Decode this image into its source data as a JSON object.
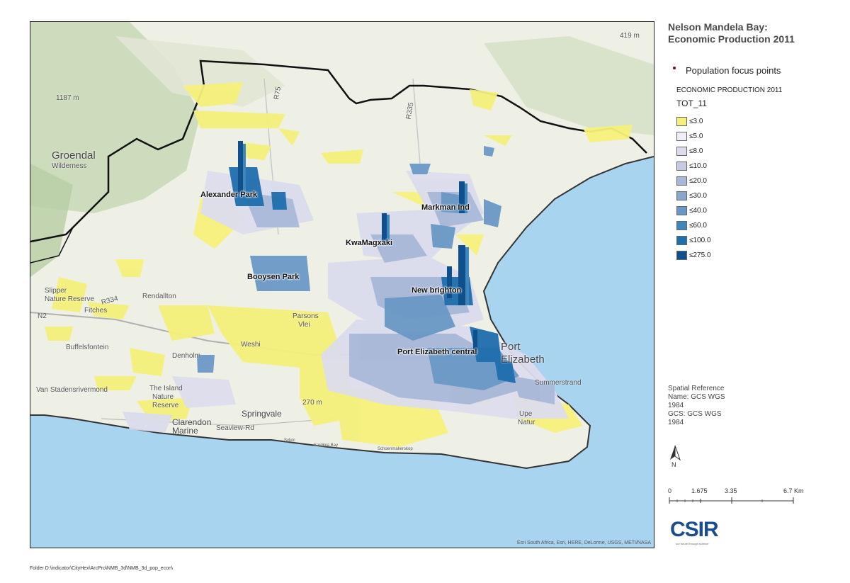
{
  "title": {
    "line1": "Nelson Mandela Bay:",
    "line2": "Economic Production 2011"
  },
  "legend": {
    "points_label": "Population focus points",
    "layer_name": "ECONOMIC PRODUCTION 2011",
    "field_name": "TOT_11",
    "classes": [
      {
        "label": "≤3.0",
        "color": "#f5f07a"
      },
      {
        "label": "≤5.0",
        "color": "#f1eef8"
      },
      {
        "label": "≤8.0",
        "color": "#dcdced"
      },
      {
        "label": "≤10.0",
        "color": "#c6cbe3"
      },
      {
        "label": "≤20.0",
        "color": "#a9b8d8"
      },
      {
        "label": "≤30.0",
        "color": "#8aa6cd"
      },
      {
        "label": "≤40.0",
        "color": "#6a98c6"
      },
      {
        "label": "≤60.0",
        "color": "#3f86bd"
      },
      {
        "label": "≤100.0",
        "color": "#1f6ead"
      },
      {
        "label": "≤275.0",
        "color": "#0e4f8c"
      }
    ],
    "points_color": "#6b0f14"
  },
  "map": {
    "place_labels": [
      "Alexander Park",
      "Markman Ind",
      "KwaMagxaki",
      "Booysen Park",
      "New brighton",
      "Port Elizabeth central"
    ],
    "base_labels": {
      "groendal": "Groendal",
      "wilderness": "Wilderness",
      "rendallton": "Rendallton",
      "parsons": "Parsons",
      "vlei": "Vlei",
      "weshi": "Weshi",
      "buffelsfontein": "Buffelsfontein",
      "denholm": "Denholm",
      "fitches": "Fitches",
      "springvale": "Springvale",
      "the_island": "The Island",
      "nature_reserve": "Nature",
      "reserve": "Reserve",
      "clarendon": "Clarendon",
      "marine": "Marine",
      "seaview_rd": "Seaview-Rd",
      "elevation_270": "270 m",
      "elevation_1187": "1187 m",
      "elevation_419": "419 m",
      "port": "Port",
      "elizabeth": "Elizabeth",
      "summerstrand": "Summerstrand",
      "upe": "Upe",
      "natur": "Natur",
      "van_stadens": "Van Stadensrivermond",
      "slipper": "Slipper",
      "nature_re": "Nature Reserve",
      "r75": "R75",
      "r335": "R335",
      "r334": "R334",
      "n2": "N2",
      "schoenmakerskop": "Schoenmakerskop",
      "sardinia_bay": "Sardinia Bay",
      "sylvic": "Sylvic"
    },
    "attribution": "Esri South Africa, Esri, HERE, DeLorme, USGS, METI/NASA",
    "colors": {
      "land": "#eef0e6",
      "vegetation": "#c9d9b8",
      "ocean": "#a8d4f0",
      "boundary": "#111111"
    }
  },
  "spatial_reference": {
    "heading": "Spatial Reference",
    "name": "Name: GCS WGS",
    "name_year": "1984",
    "gcs": "GCS: GCS WGS",
    "gcs_year": "1984"
  },
  "north_label": "N",
  "scale": {
    "ticks": [
      "0",
      "1.675",
      "3.35",
      "6.7 Km"
    ]
  },
  "logo": {
    "text": "CSIR",
    "tagline": "our future through science"
  },
  "folder_path": "Folder D:\\indicator\\CityHex\\ArcPro\\NMB_3d\\NMB_3d_pop_econ\\"
}
